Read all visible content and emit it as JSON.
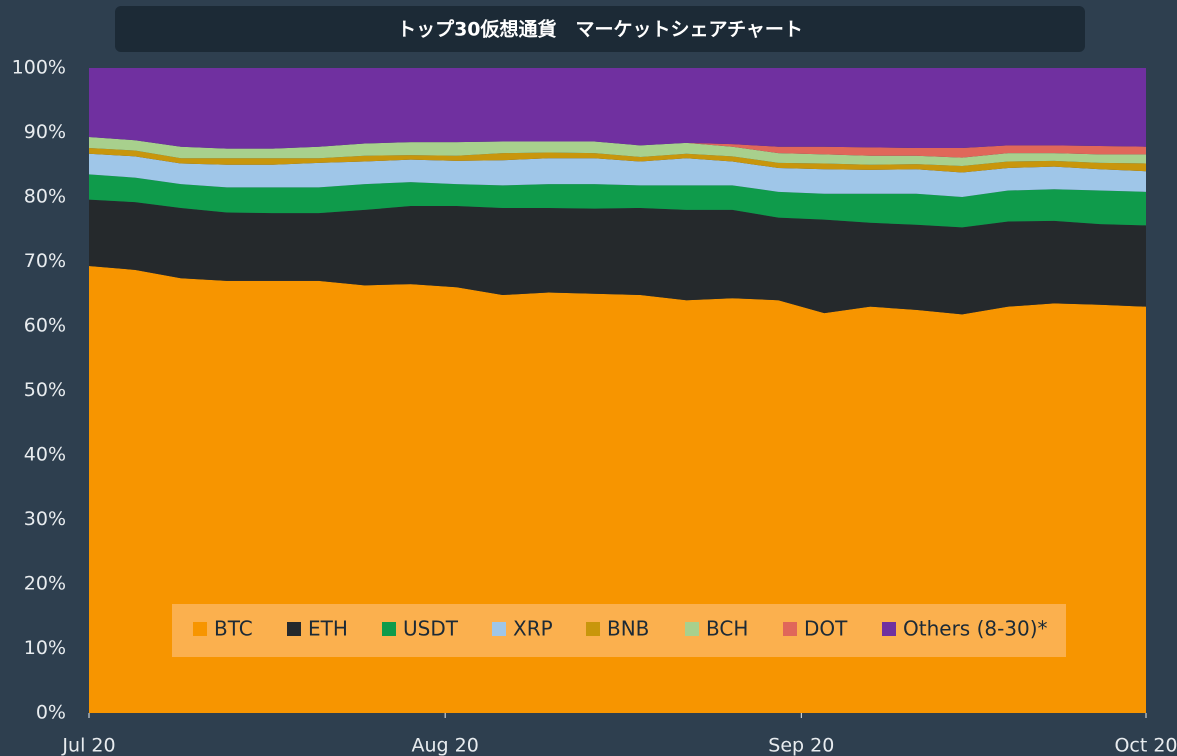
{
  "chart_data": {
    "type": "stacked_area",
    "title": "トップ30仮想通貨　マーケットシェアチャート",
    "x": [
      0,
      4,
      8,
      12,
      16,
      20,
      24,
      28,
      32,
      36,
      40,
      44,
      48,
      52,
      56,
      60,
      64,
      68,
      72,
      76,
      80,
      84,
      88,
      92
    ],
    "xlim": [
      0,
      92
    ],
    "xticks": [
      {
        "value": 0,
        "label": "Jul 20"
      },
      {
        "value": 31,
        "label": "Aug 20"
      },
      {
        "value": 62,
        "label": "Sep 20"
      },
      {
        "value": 92,
        "label": "Oct 20"
      }
    ],
    "ylim": [
      0,
      100
    ],
    "yticks": [
      {
        "value": 0,
        "label": "0%"
      },
      {
        "value": 10,
        "label": "10%"
      },
      {
        "value": 20,
        "label": "20%"
      },
      {
        "value": 30,
        "label": "30%"
      },
      {
        "value": 40,
        "label": "40%"
      },
      {
        "value": 50,
        "label": "50%"
      },
      {
        "value": 60,
        "label": "60%"
      },
      {
        "value": 70,
        "label": "70%"
      },
      {
        "value": 80,
        "label": "80%"
      },
      {
        "value": 90,
        "label": "90%"
      },
      {
        "value": 100,
        "label": "100%"
      }
    ],
    "series": [
      {
        "name": "BTC",
        "color": "#f79500",
        "values": [
          69.3,
          68.7,
          67.4,
          67.0,
          67.0,
          67.0,
          66.3,
          66.5,
          66.0,
          64.8,
          65.2,
          65.0,
          64.8,
          64.0,
          64.3,
          64.0,
          62.0,
          63.0,
          62.5,
          61.8,
          63.0,
          63.5,
          63.3,
          63.0
        ]
      },
      {
        "name": "ETH",
        "color": "#25292c",
        "values": [
          10.3,
          10.5,
          10.9,
          10.6,
          10.5,
          10.5,
          11.7,
          12.1,
          12.6,
          13.5,
          13.1,
          13.2,
          13.5,
          14.0,
          13.7,
          12.8,
          14.5,
          13.0,
          13.2,
          13.5,
          13.2,
          12.8,
          12.5,
          12.6
        ]
      },
      {
        "name": "USDT",
        "color": "#0f9b4b",
        "values": [
          3.9,
          3.8,
          3.7,
          3.9,
          4.0,
          4.0,
          4.0,
          3.7,
          3.4,
          3.5,
          3.7,
          3.8,
          3.5,
          3.8,
          3.8,
          4.0,
          4.0,
          4.5,
          4.8,
          4.7,
          4.8,
          4.9,
          5.2,
          5.2
        ]
      },
      {
        "name": "XRP",
        "color": "#9fc6e8",
        "values": [
          3.2,
          3.3,
          3.2,
          3.5,
          3.5,
          3.8,
          3.5,
          3.5,
          3.6,
          3.9,
          4.0,
          4.0,
          3.7,
          4.2,
          3.7,
          3.7,
          3.8,
          3.7,
          3.8,
          3.8,
          3.5,
          3.5,
          3.3,
          3.2
        ]
      },
      {
        "name": "BNB",
        "color": "#c8960c",
        "values": [
          0.9,
          0.9,
          0.8,
          1.0,
          1.0,
          0.7,
          0.9,
          0.7,
          0.8,
          1.1,
          0.9,
          0.8,
          0.7,
          0.7,
          0.8,
          0.8,
          0.9,
          0.8,
          0.8,
          1.0,
          1.0,
          0.9,
          1.0,
          1.2
        ]
      },
      {
        "name": "BCH",
        "color": "#a8d08d",
        "values": [
          1.7,
          1.6,
          1.8,
          1.5,
          1.5,
          1.8,
          1.9,
          2.0,
          2.1,
          1.8,
          1.7,
          1.8,
          1.8,
          1.7,
          1.5,
          1.5,
          1.4,
          1.4,
          1.3,
          1.3,
          1.3,
          1.2,
          1.3,
          1.4
        ]
      },
      {
        "name": "DOT",
        "color": "#e0675a",
        "values": [
          0,
          0,
          0,
          0,
          0,
          0,
          0,
          0,
          0,
          0,
          0,
          0,
          0,
          0,
          0.4,
          1.0,
          1.2,
          1.3,
          1.2,
          1.5,
          1.2,
          1.2,
          1.3,
          1.2
        ]
      },
      {
        "name": "Others (8-30)*",
        "color": "#7030a0",
        "values": [
          10.7,
          11.2,
          12.2,
          12.5,
          12.5,
          12.2,
          11.7,
          11.5,
          11.5,
          11.4,
          11.4,
          11.4,
          12.0,
          11.6,
          11.8,
          12.2,
          12.2,
          12.3,
          12.4,
          12.4,
          12.0,
          12.0,
          12.1,
          12.2
        ]
      }
    ]
  }
}
